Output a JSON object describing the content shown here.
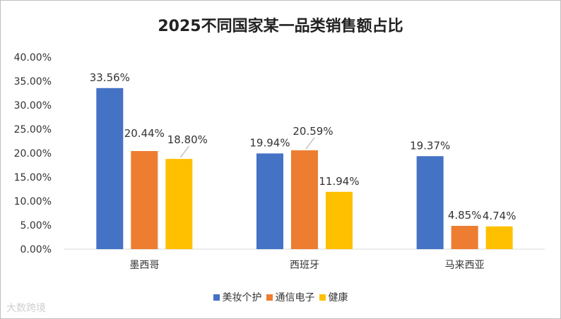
{
  "watermark": "大数跨境",
  "chart_data": {
    "type": "bar",
    "title": "2025不同国家某一品类销售额占比",
    "categories": [
      "墨西哥",
      "西班牙",
      "马来西亚"
    ],
    "series": [
      {
        "name": "美妆个护",
        "color": "#4472C4",
        "values": [
          33.56,
          19.94,
          19.37
        ]
      },
      {
        "name": "通信电子",
        "color": "#ED7D31",
        "values": [
          20.44,
          20.59,
          4.85
        ]
      },
      {
        "name": "健康",
        "color": "#FFC000",
        "values": [
          18.8,
          11.94,
          4.74
        ]
      }
    ],
    "ylim": [
      0,
      40
    ],
    "yticks": [
      "0.00%",
      "5.00%",
      "10.00%",
      "15.00%",
      "20.00%",
      "25.00%",
      "30.00%",
      "35.00%",
      "40.00%"
    ],
    "grid": false,
    "legend": "bottom",
    "xlabel": "",
    "ylabel": ""
  }
}
